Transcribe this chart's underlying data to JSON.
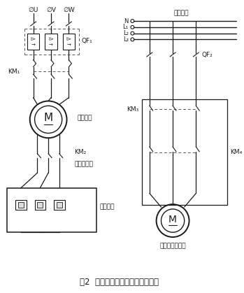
{
  "title": "图2  液阻软启动控制系统主电路图",
  "title_fontsize": 8.5,
  "fig_width": 3.49,
  "fig_height": 4.19,
  "background": "#ffffff",
  "line_color": "#1a1a1a",
  "dashed_color": "#555555",
  "phi_U": "∅U",
  "phi_V": "∅V",
  "phi_W": "∅W",
  "QF1": "QF₁",
  "QF2": "QF₂",
  "KM1": "KM₁",
  "KM2": "KM₂",
  "KM3": "KM₃",
  "KM4": "KM₄",
  "N": "N",
  "L1": "L₁",
  "L2": "L₂",
  "L3": "L₃",
  "three_phase": "三相四线",
  "main_motor": "主电动机",
  "short_contactor": "短接接触器",
  "liquid_resistor": "液体电阴",
  "plate_motor": "极板移动电动机"
}
